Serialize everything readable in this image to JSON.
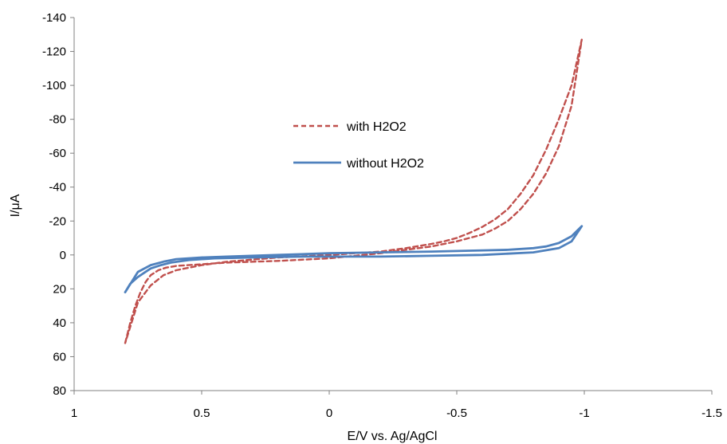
{
  "chart_data": {
    "type": "line",
    "title": "",
    "xlabel": "E/V vs. Ag/AgCl",
    "ylabel": "I/μA",
    "xlim": [
      1,
      -1.5
    ],
    "ylim": [
      80,
      -140
    ],
    "x_reversed": true,
    "y_reversed": true,
    "grid": false,
    "legend_position": "center",
    "x_ticks": [
      1,
      0.5,
      0,
      -0.5,
      -1,
      -1.5
    ],
    "x_tick_labels": [
      "1",
      "0.5",
      "0",
      "-0.5",
      "-1",
      "-1.5"
    ],
    "y_ticks": [
      -140,
      -120,
      -100,
      -80,
      -60,
      -40,
      -20,
      0,
      20,
      40,
      60,
      80
    ],
    "y_tick_labels": [
      "-140",
      "-120",
      "-100",
      "-80",
      "-60",
      "-40",
      "-20",
      "0",
      "20",
      "40",
      "60",
      "80"
    ],
    "series": [
      {
        "name": "with H2O2",
        "color": "#C0504D",
        "dash": "dashed",
        "x": [
          0.8,
          0.78,
          0.76,
          0.74,
          0.72,
          0.7,
          0.67,
          0.64,
          0.6,
          0.5,
          0.4,
          0.2,
          0.0,
          -0.1,
          -0.2,
          -0.3,
          -0.4,
          -0.5,
          -0.55,
          -0.6,
          -0.65,
          -0.7,
          -0.75,
          -0.8,
          -0.85,
          -0.9,
          -0.95,
          -0.99,
          -0.95,
          -0.9,
          -0.85,
          -0.8,
          -0.75,
          -0.7,
          -0.65,
          -0.6,
          -0.55,
          -0.5,
          -0.45,
          -0.4,
          -0.3,
          -0.2,
          -0.1,
          0.0,
          0.2,
          0.4,
          0.5,
          0.6,
          0.65,
          0.7,
          0.75,
          0.8
        ],
        "y": [
          52,
          40,
          30,
          22,
          16,
          12,
          9,
          7.5,
          6.5,
          5.5,
          4.5,
          3.5,
          2,
          0.5,
          -1,
          -3,
          -5,
          -8,
          -10,
          -12,
          -15.5,
          -20,
          -27,
          -36,
          -48,
          -64,
          -88,
          -127,
          -100,
          -80,
          -62,
          -47,
          -36,
          -27,
          -21,
          -16.5,
          -13,
          -10,
          -8,
          -6.5,
          -4,
          -2,
          -1,
          0,
          1.5,
          4,
          6,
          9,
          12,
          18,
          28,
          52
        ]
      },
      {
        "name": "without H2O2",
        "color": "#4F81BD",
        "dash": "solid",
        "x": [
          0.8,
          0.78,
          0.75,
          0.72,
          0.7,
          0.66,
          0.62,
          0.55,
          0.45,
          0.3,
          0.1,
          0.0,
          -0.2,
          -0.4,
          -0.6,
          -0.8,
          -0.9,
          -0.95,
          -0.99,
          -0.95,
          -0.9,
          -0.85,
          -0.8,
          -0.7,
          -0.55,
          -0.4,
          -0.2,
          0.0,
          0.2,
          0.4,
          0.5,
          0.6,
          0.65,
          0.7,
          0.75,
          0.8
        ],
        "y": [
          22,
          17,
          13,
          10,
          8,
          6,
          4.5,
          3,
          2,
          1.5,
          1,
          1,
          1,
          0.5,
          0,
          -1.5,
          -4,
          -8,
          -17,
          -11,
          -7,
          -5,
          -4,
          -3,
          -2.5,
          -2,
          -1.5,
          -1,
          0,
          1,
          1.5,
          2.5,
          4,
          6,
          10,
          22
        ]
      }
    ]
  }
}
